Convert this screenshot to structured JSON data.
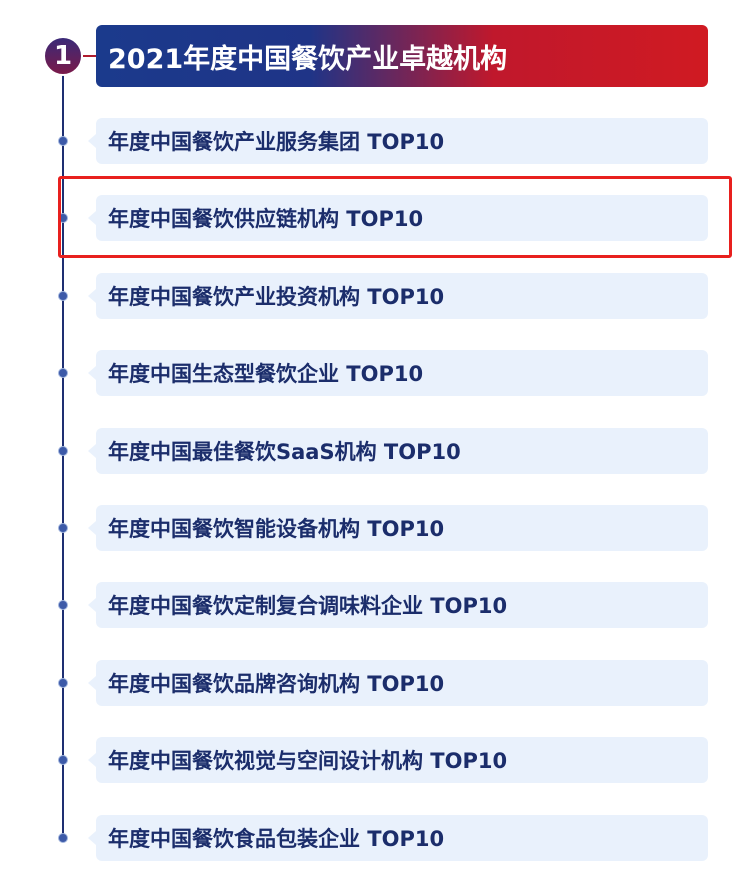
{
  "section": {
    "number": "1",
    "title": "2021年度中国餐饮产业卓越机构"
  },
  "items": [
    {
      "label": "年度中国餐饮产业服务集团 TOP10"
    },
    {
      "label": "年度中国餐饮供应链机构 TOP10",
      "highlighted": true
    },
    {
      "label": "年度中国餐饮产业投资机构 TOP10"
    },
    {
      "label": "年度中国生态型餐饮企业 TOP10"
    },
    {
      "label": "年度中国最佳餐饮SaaS机构 TOP10"
    },
    {
      "label": "年度中国餐饮智能设备机构 TOP10"
    },
    {
      "label": "年度中国餐饮定制复合调味料企业 TOP10"
    },
    {
      "label": "年度中国餐饮品牌咨询机构 TOP10"
    },
    {
      "label": "年度中国餐饮视觉与空间设计机构 TOP10"
    },
    {
      "label": "年度中国餐饮食品包装企业 TOP10"
    }
  ],
  "colors": {
    "navy": "#1b2d6b",
    "highlight": "#e8201e",
    "item_bg": "#e9f1fc"
  }
}
